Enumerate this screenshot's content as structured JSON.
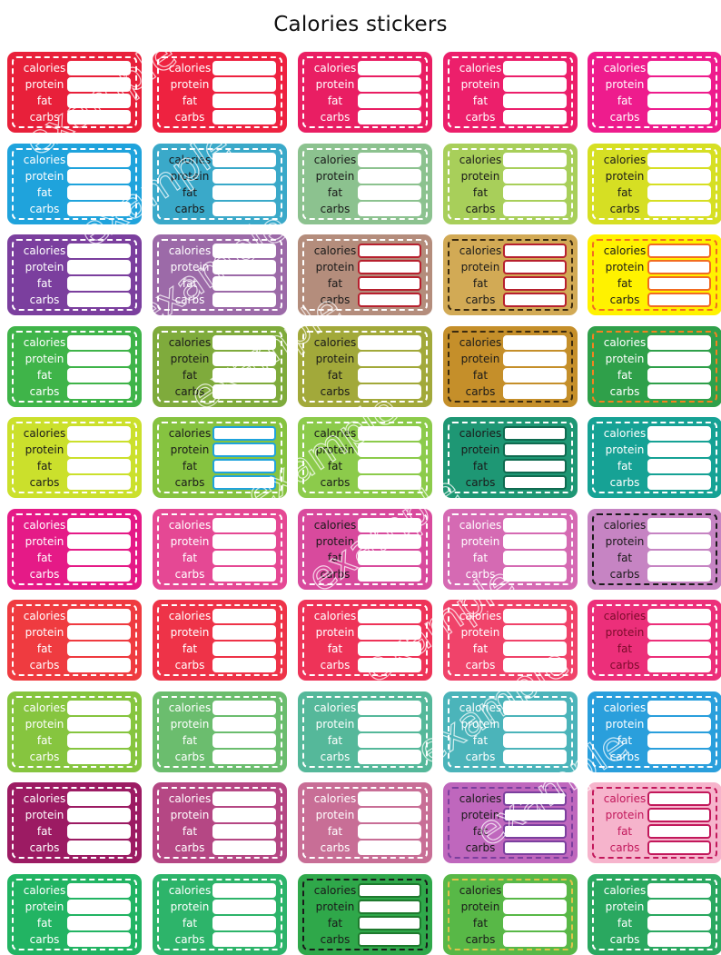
{
  "title": "Calories stickers",
  "labels": [
    "calories",
    "protein",
    "fat",
    "carbs"
  ],
  "watermark": "example",
  "stickers": [
    {
      "bg": "#e8203a",
      "dash": "#ffffff",
      "fg": "#ffffff",
      "box": "#ffffff"
    },
    {
      "bg": "#ee2240",
      "dash": "#ffffff",
      "fg": "#ffffff",
      "box": "#ffffff"
    },
    {
      "bg": "#e91e63",
      "dash": "#ffffff",
      "fg": "#ffffff",
      "box": "#ffffff"
    },
    {
      "bg": "#ec1f6b",
      "dash": "#ffffff",
      "fg": "#ffffff",
      "box": "#ffffff"
    },
    {
      "bg": "#ee1c8d",
      "dash": "#ffffff",
      "fg": "#ffffff",
      "box": "#ffffff"
    },
    {
      "bg": "#1fa3dc",
      "dash": "#ffffff",
      "fg": "#ffffff",
      "box": "#ffffff"
    },
    {
      "bg": "#3aa9c9",
      "dash": "#ffffff",
      "fg": "#1a1a1a",
      "box": "#ffffff"
    },
    {
      "bg": "#8cc28f",
      "dash": "#ffffff",
      "fg": "#1a1a1a",
      "box": "#ffffff"
    },
    {
      "bg": "#a8cf5a",
      "dash": "#ffffff",
      "fg": "#1a1a1a",
      "box": "#ffffff"
    },
    {
      "bg": "#d6df23",
      "dash": "#ffffff",
      "fg": "#1a1a1a",
      "box": "#ffffff"
    },
    {
      "bg": "#7b3f9e",
      "dash": "#ffffff",
      "fg": "#ffffff",
      "box": "#ffffff"
    },
    {
      "bg": "#9c6aa8",
      "dash": "#ffffff",
      "fg": "#ffffff",
      "box": "#ffffff"
    },
    {
      "bg": "#b48d7c",
      "dash": "#ffffff",
      "fg": "#1a1a1a",
      "box": "#b7202e"
    },
    {
      "bg": "#d2aa55",
      "dash": "#3a2a10",
      "fg": "#1a1a1a",
      "box": "#b7202e"
    },
    {
      "bg": "#fff200",
      "dash": "#f26b21",
      "fg": "#1a1a1a",
      "box": "#f26b21"
    },
    {
      "bg": "#3fb449",
      "dash": "#ffffff",
      "fg": "#ffffff",
      "box": "#ffffff"
    },
    {
      "bg": "#7fab3c",
      "dash": "#ffffff",
      "fg": "#1a1a1a",
      "box": "#ffffff"
    },
    {
      "bg": "#a2a93a",
      "dash": "#ffffff",
      "fg": "#1a1a1a",
      "box": "#ffffff"
    },
    {
      "bg": "#c58f2a",
      "dash": "#3a2a10",
      "fg": "#1a1a1a",
      "box": "#ffffff"
    },
    {
      "bg": "#2fa04a",
      "dash": "#f58220",
      "fg": "#ffffff",
      "box": "#ffffff"
    },
    {
      "bg": "#cbe02c",
      "dash": "#ffffff",
      "fg": "#1a1a1a",
      "box": "#ffffff"
    },
    {
      "bg": "#86c340",
      "dash": "#ffffff",
      "fg": "#1a1a1a",
      "box": "#1fa3dc"
    },
    {
      "bg": "#8ccb4b",
      "dash": "#ffffff",
      "fg": "#1a1a1a",
      "box": "#ffffff"
    },
    {
      "bg": "#1e9774",
      "dash": "#ffffff",
      "fg": "#1a1a1a",
      "box": "#0f6b50"
    },
    {
      "bg": "#16a295",
      "dash": "#ffffff",
      "fg": "#ffffff",
      "box": "#ffffff"
    },
    {
      "bg": "#e51a87",
      "dash": "#ffffff",
      "fg": "#ffffff",
      "box": "#ffffff"
    },
    {
      "bg": "#e54894",
      "dash": "#ffffff",
      "fg": "#ffffff",
      "box": "#ffffff"
    },
    {
      "bg": "#d84a9d",
      "dash": "#ffffff",
      "fg": "#1a1a1a",
      "box": "#ffffff"
    },
    {
      "bg": "#d56ab3",
      "dash": "#ffffff",
      "fg": "#ffffff",
      "box": "#ffffff"
    },
    {
      "bg": "#c684c3",
      "dash": "#1a1a1a",
      "fg": "#1a1a1a",
      "box": "#ffffff"
    },
    {
      "bg": "#ef3b40",
      "dash": "#ffffff",
      "fg": "#ffffff",
      "box": "#ffffff"
    },
    {
      "bg": "#ee3348",
      "dash": "#ffffff",
      "fg": "#ffffff",
      "box": "#ffffff"
    },
    {
      "bg": "#ee3358",
      "dash": "#ffffff",
      "fg": "#ffffff",
      "box": "#ffffff"
    },
    {
      "bg": "#f0436a",
      "dash": "#ffffff",
      "fg": "#ffffff",
      "box": "#ffffff"
    },
    {
      "bg": "#ec2f7a",
      "dash": "#ffffff",
      "fg": "#7a0b2a",
      "box": "#ffffff"
    },
    {
      "bg": "#86c53f",
      "dash": "#ffffff",
      "fg": "#ffffff",
      "box": "#ffffff"
    },
    {
      "bg": "#6bbd6e",
      "dash": "#ffffff",
      "fg": "#ffffff",
      "box": "#ffffff"
    },
    {
      "bg": "#55b89a",
      "dash": "#ffffff",
      "fg": "#ffffff",
      "box": "#ffffff"
    },
    {
      "bg": "#4bb4ba",
      "dash": "#ffffff",
      "fg": "#ffffff",
      "box": "#ffffff"
    },
    {
      "bg": "#2a9fdc",
      "dash": "#ffffff",
      "fg": "#ffffff",
      "box": "#ffffff"
    },
    {
      "bg": "#9c1b63",
      "dash": "#ffffff",
      "fg": "#ffffff",
      "box": "#ffffff"
    },
    {
      "bg": "#b54784",
      "dash": "#ffffff",
      "fg": "#ffffff",
      "box": "#ffffff"
    },
    {
      "bg": "#c86e96",
      "dash": "#ffffff",
      "fg": "#ffffff",
      "box": "#ffffff"
    },
    {
      "bg": "#bf67bd",
      "dash": "#7b3f9e",
      "fg": "#1a1a1a",
      "box": "#7b3f9e"
    },
    {
      "bg": "#f6b4cc",
      "dash": "#c2185b",
      "fg": "#c2185b",
      "box": "#c2185b"
    },
    {
      "bg": "#22b463",
      "dash": "#ffffff",
      "fg": "#ffffff",
      "box": "#ffffff"
    },
    {
      "bg": "#2db46a",
      "dash": "#ffffff",
      "fg": "#ffffff",
      "box": "#ffffff"
    },
    {
      "bg": "#2fa84a",
      "dash": "#1a1a1a",
      "fg": "#1a1a1a",
      "box": "#1f7a2e"
    },
    {
      "bg": "#58b847",
      "dash": "#e0c34b",
      "fg": "#1a1a1a",
      "box": "#ffffff"
    },
    {
      "bg": "#2aa860",
      "dash": "#ffffff",
      "fg": "#ffffff",
      "box": "#ffffff"
    }
  ]
}
